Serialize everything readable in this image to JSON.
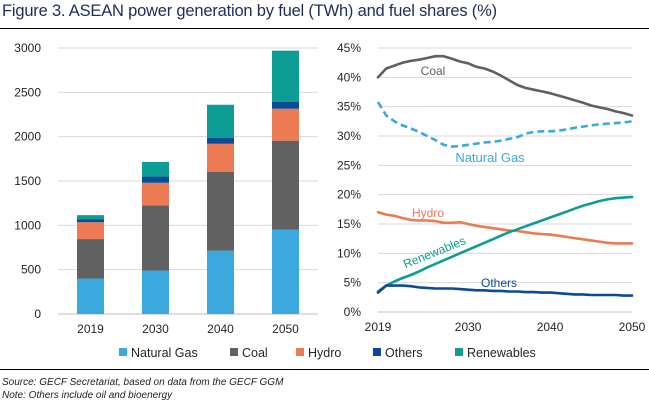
{
  "title": "Figure 3. ASEAN power generation by fuel (TWh) and fuel shares (%)",
  "source": "Source: GECF Secretariat, based on data from the GECF GGM",
  "note": "Note: Others include oil and bioenergy",
  "colors": {
    "Natural Gas": "#3aa9dd",
    "Coal": "#616161",
    "Hydro": "#ec7a53",
    "Others": "#0b4a96",
    "Renewables": "#0e9d94"
  },
  "legend": [
    "Natural Gas",
    "Coal",
    "Hydro",
    "Others",
    "Renewables"
  ],
  "chart_data": [
    {
      "type": "bar",
      "stacked": true,
      "title": "ASEAN power generation by fuel",
      "ylabel": "TWh",
      "ylim": [
        0,
        3000
      ],
      "yticks": [
        0,
        500,
        1000,
        1500,
        2000,
        2500,
        3000
      ],
      "grid": true,
      "categories": [
        "2019",
        "2030",
        "2040",
        "2050"
      ],
      "series": [
        {
          "name": "Natural Gas",
          "values": [
            400,
            490,
            715,
            950
          ]
        },
        {
          "name": "Coal",
          "values": [
            445,
            735,
            890,
            1005
          ]
        },
        {
          "name": "Hydro",
          "values": [
            190,
            255,
            315,
            360
          ]
        },
        {
          "name": "Others",
          "values": [
            35,
            70,
            65,
            80
          ]
        },
        {
          "name": "Renewables",
          "values": [
            45,
            165,
            375,
            575
          ]
        }
      ],
      "legend": "bottom"
    },
    {
      "type": "line",
      "title": "Fuel shares",
      "ylabel": "%",
      "ylim": [
        0,
        45
      ],
      "yticks": [
        "0%",
        "5%",
        "10%",
        "15%",
        "20%",
        "25%",
        "30%",
        "35%",
        "40%",
        "45%"
      ],
      "xticks": [
        "2019",
        "2030",
        "2040",
        "2050"
      ],
      "xstart": 2019,
      "grid": true,
      "series": [
        {
          "name": "Coal",
          "label": "Coal",
          "style": "solid",
          "values": [
            40,
            41.5,
            42,
            42.5,
            42.8,
            43,
            43.3,
            43.6,
            43.6,
            43.2,
            42.7,
            42.4,
            41.8,
            41.5,
            41,
            40.3,
            39.5,
            38.7,
            38.2,
            37.9,
            37.6,
            37.3,
            36.9,
            36.5,
            36.1,
            35.7,
            35.2,
            34.9,
            34.6,
            34.2,
            33.9,
            33.5
          ]
        },
        {
          "name": "Natural Gas",
          "label": "Natural Gas",
          "style": "dashed",
          "values": [
            35.8,
            33.5,
            32.5,
            31.8,
            31.3,
            30.7,
            30,
            29.3,
            28.5,
            28.2,
            28.3,
            28.5,
            28.7,
            28.9,
            29,
            29.2,
            29.5,
            29.8,
            30.4,
            30.7,
            30.8,
            30.8,
            30.9,
            31.1,
            31.4,
            31.6,
            31.8,
            32,
            32.1,
            32.2,
            32.3,
            32.5
          ]
        },
        {
          "name": "Hydro",
          "label": "Hydro",
          "style": "solid",
          "values": [
            17,
            16.6,
            16.4,
            16,
            15.7,
            15.6,
            15.6,
            15.5,
            15.2,
            15.2,
            15.3,
            15,
            14.7,
            14.5,
            14.3,
            14.1,
            13.9,
            13.8,
            13.6,
            13.4,
            13.3,
            13.2,
            13,
            12.8,
            12.6,
            12.4,
            12.2,
            12,
            11.8,
            11.7,
            11.7,
            11.7
          ]
        },
        {
          "name": "Renewables",
          "label": "Renewables",
          "style": "solid",
          "values": [
            3.5,
            4.5,
            5.2,
            5.8,
            6.3,
            6.9,
            7.6,
            8.2,
            8.8,
            9.4,
            10,
            10.6,
            11.2,
            11.8,
            12.4,
            13,
            13.6,
            14.1,
            14.6,
            15.1,
            15.6,
            16.1,
            16.6,
            17.1,
            17.6,
            18.1,
            18.5,
            18.9,
            19.2,
            19.4,
            19.5,
            19.6
          ]
        },
        {
          "name": "Others",
          "label": "Others",
          "style": "solid",
          "values": [
            3.3,
            4.5,
            4.5,
            4.5,
            4.4,
            4.2,
            4.1,
            4,
            4,
            4,
            3.9,
            3.8,
            3.7,
            3.7,
            3.6,
            3.6,
            3.5,
            3.5,
            3.4,
            3.4,
            3.3,
            3.3,
            3.2,
            3.1,
            3,
            3,
            2.9,
            2.9,
            2.9,
            2.9,
            2.8,
            2.8
          ]
        }
      ]
    }
  ]
}
